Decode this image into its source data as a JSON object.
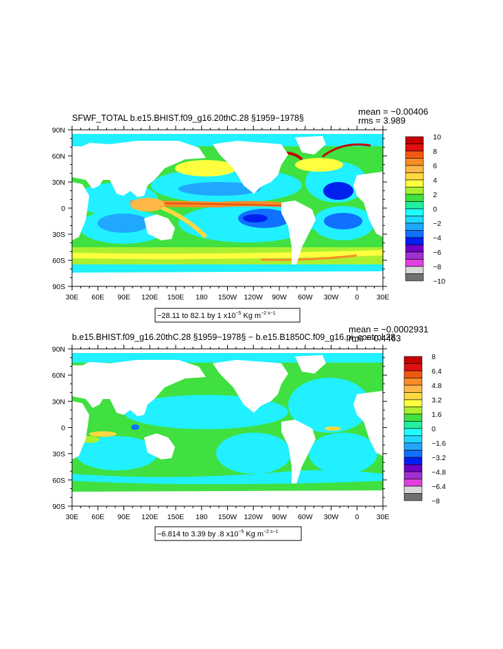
{
  "panels": [
    {
      "title": "SFWF_TOTAL  b.e15.BHIST.f09_g16.20thC.28  §1959−1978§",
      "stats_mean": "mean = −0.00406",
      "stats_rms": "rms = 3.989",
      "range_prefix": "−28.11 to 82.1 by 1 x10",
      "range_exp": "−5",
      "range_units": " Kg m",
      "range_units_exp": "−2 s−1",
      "colorbar_labels": [
        "10",
        "8",
        "6",
        "4",
        "2",
        "0",
        "−2",
        "−4",
        "−6",
        "−8",
        "−10"
      ]
    },
    {
      "title": "b.e15.BHIST.f09_g16.20thC.28  §1959−1978§  −  b.e15.B1850C.f09_g16.pi_control.28",
      "stats_mean": "mean = −0.0002931",
      "stats_rms": "rms = 0.4463",
      "range_prefix": "−6.814 to 3.39 by .8 x10",
      "range_exp": "−5",
      "range_units": " Kg m",
      "range_units_exp": "−2 s−1",
      "colorbar_labels": [
        "8",
        "6.4",
        "4.8",
        "3.2",
        "1.6",
        "0",
        "−1.6",
        "−3.2",
        "−4.8",
        "−6.4",
        "−8"
      ]
    }
  ],
  "chart_data": [
    {
      "type": "heatmap",
      "title": "SFWF_TOTAL  b.e15.BHIST.f09_g16.20thC.28  §1959−1978§",
      "x_ticks": [
        "30E",
        "60E",
        "90E",
        "120E",
        "150E",
        "180",
        "150W",
        "120W",
        "90W",
        "60W",
        "30W",
        "0",
        "30E"
      ],
      "y_ticks": [
        "90N",
        "60N",
        "30N",
        "0",
        "30S",
        "60S",
        "90S"
      ],
      "xlim": [
        30,
        390
      ],
      "ylim": [
        -90,
        90
      ],
      "colorbar_levels": [
        10,
        8,
        6,
        4,
        2,
        0,
        -2,
        -4,
        -6,
        -8,
        -10
      ],
      "min": -28.11,
      "max": 82.1,
      "interval": 1,
      "mean": -0.00406,
      "rms": 3.989,
      "colors": [
        "#c40000",
        "#e01010",
        "#f05a10",
        "#f88c28",
        "#ffb848",
        "#ffd840",
        "#ffff40",
        "#aaf030",
        "#40e040",
        "#20f0a0",
        "#20ffff",
        "#20d8ff",
        "#20a8ff",
        "#1070ff",
        "#0020f0",
        "#7000c8",
        "#a030d0",
        "#e040e0",
        "#d8d8d8",
        "#707070"
      ]
    },
    {
      "type": "heatmap",
      "title": "b.e15.BHIST.f09_g16.20thC.28  §1959−1978§  −  b.e15.B1850C.f09_g16.pi_control.28",
      "x_ticks": [
        "30E",
        "60E",
        "90E",
        "120E",
        "150E",
        "180",
        "150W",
        "120W",
        "90W",
        "60W",
        "30W",
        "0",
        "30E"
      ],
      "y_ticks": [
        "90N",
        "60N",
        "30N",
        "0",
        "30S",
        "60S",
        "90S"
      ],
      "xlim": [
        30,
        390
      ],
      "ylim": [
        -90,
        90
      ],
      "colorbar_levels": [
        8,
        6.4,
        4.8,
        3.2,
        1.6,
        0,
        -1.6,
        -3.2,
        -4.8,
        -6.4,
        -8
      ],
      "min": -6.814,
      "max": 3.39,
      "interval": 0.8,
      "mean": -0.0002931,
      "rms": 0.4463,
      "colors": [
        "#c40000",
        "#e01010",
        "#f05a10",
        "#f88c28",
        "#ffb848",
        "#ffd840",
        "#ffff40",
        "#aaf030",
        "#40e040",
        "#20f0a0",
        "#20ffff",
        "#20d8ff",
        "#20a8ff",
        "#1070ff",
        "#0020f0",
        "#7000c8",
        "#a030d0",
        "#e040e0",
        "#d8d8d8",
        "#707070"
      ]
    }
  ]
}
